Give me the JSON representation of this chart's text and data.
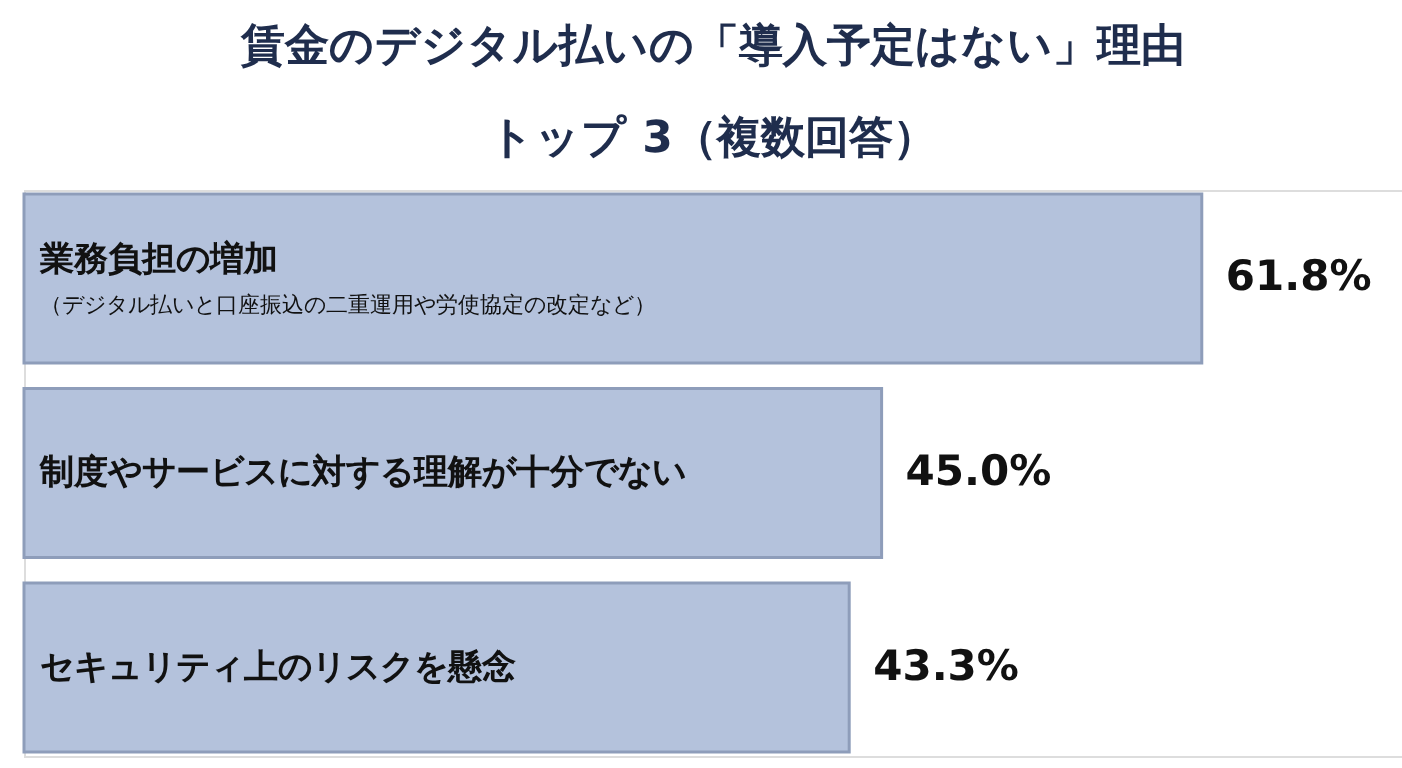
{
  "chart_data": {
    "type": "bar",
    "orientation": "horizontal",
    "title": [
      "賃金のデジタル払いの「導入予定はない」理由",
      "トップ 3（複数回答）"
    ],
    "categories": [
      "業務負担の増加",
      "制度やサービスに対する理解が十分でない",
      "セキュリティ上のリスクを懸念"
    ],
    "values": [
      61.8,
      45.0,
      43.3
    ],
    "value_labels": [
      "61.8%",
      "45.0%",
      "43.3%"
    ],
    "color": "#b4c2dc",
    "tick_labels": false,
    "annotations": [
      "（デジタル払いと口座振込の二重運用や労使協定の改定など）"
    ]
  }
}
